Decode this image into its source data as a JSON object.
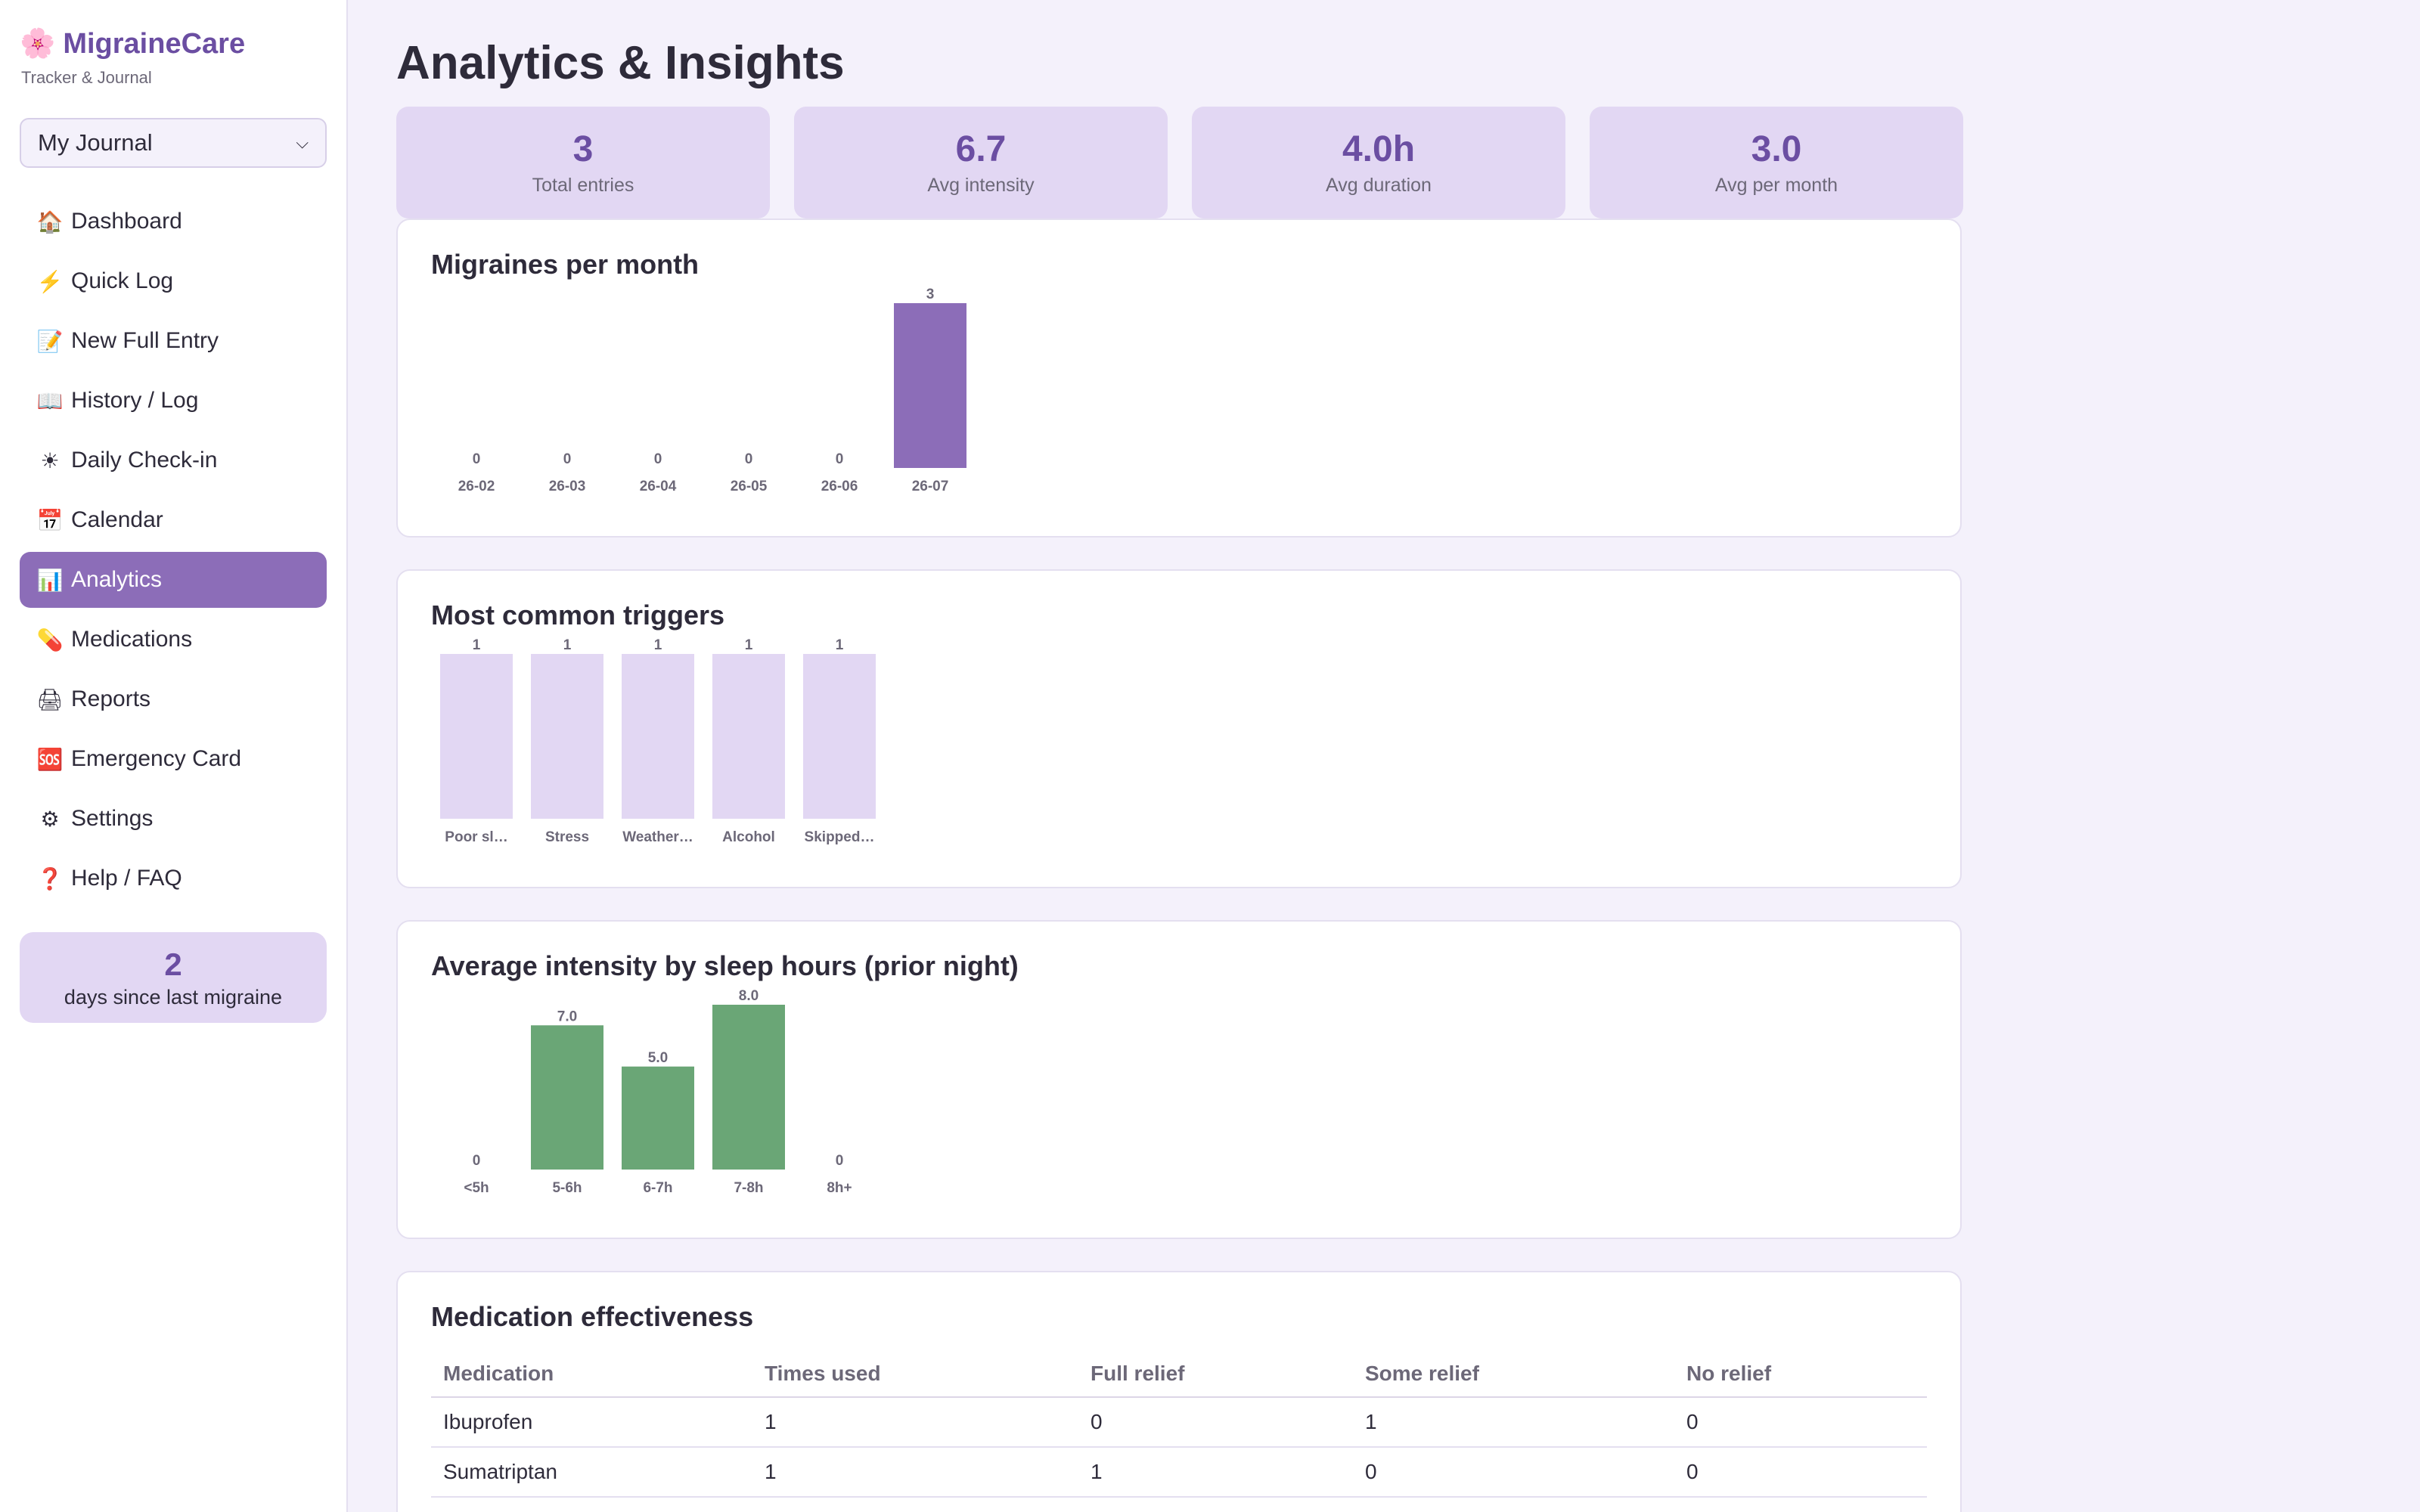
{
  "app": {
    "name": "MigraineCare",
    "tagline": "Tracker & Journal"
  },
  "journal_select": {
    "value": "My Journal"
  },
  "sidebar": {
    "items": [
      {
        "icon": "🏠",
        "icon_name": "home-icon",
        "label": "Dashboard",
        "active": false
      },
      {
        "icon": "⚡",
        "icon_name": "lightning-icon",
        "label": "Quick Log",
        "active": false
      },
      {
        "icon": "📝",
        "icon_name": "memo-icon",
        "label": "New Full Entry",
        "active": false
      },
      {
        "icon": "📖",
        "icon_name": "book-icon",
        "label": "History / Log",
        "active": false
      },
      {
        "icon": "☀",
        "icon_name": "sun-icon",
        "label": "Daily Check-in",
        "active": false
      },
      {
        "icon": "📅",
        "icon_name": "calendar-icon",
        "label": "Calendar",
        "active": false
      },
      {
        "icon": "📊",
        "icon_name": "chart-icon",
        "label": "Analytics",
        "active": true
      },
      {
        "icon": "💊",
        "icon_name": "pill-icon",
        "label": "Medications",
        "active": false
      },
      {
        "icon": "🖨",
        "icon_name": "printer-icon",
        "label": "Reports",
        "active": false
      },
      {
        "icon": "🆘",
        "icon_name": "sos-icon",
        "label": "Emergency Card",
        "active": false
      },
      {
        "icon": "⚙",
        "icon_name": "gear-icon",
        "label": "Settings",
        "active": false
      },
      {
        "icon": "❓",
        "icon_name": "question-icon",
        "label": "Help / FAQ",
        "active": false
      }
    ],
    "streak": {
      "value": "2",
      "label": "days since last migraine"
    }
  },
  "page": {
    "title": "Analytics & Insights"
  },
  "stats": [
    {
      "value": "3",
      "label": "Total entries"
    },
    {
      "value": "6.7",
      "label": "Avg intensity"
    },
    {
      "value": "4.0h",
      "label": "Avg duration"
    },
    {
      "value": "3.0",
      "label": "Avg per month"
    }
  ],
  "colors": {
    "accent": "#8c6db8",
    "trigger_bar": "#e2d7f3",
    "sleep_bar": "#6aa676",
    "text_muted": "#6c6878"
  },
  "cards": {
    "monthly_title": "Migraines per month",
    "triggers_title": "Most common triggers",
    "sleep_title": "Average intensity by sleep hours (prior night)",
    "meds_title": "Medication effectiveness"
  },
  "chart_data": [
    {
      "type": "bar",
      "title": "Migraines per month",
      "categories": [
        "26-02",
        "26-03",
        "26-04",
        "26-05",
        "26-06",
        "26-07"
      ],
      "values": [
        0,
        0,
        0,
        0,
        0,
        3
      ],
      "value_labels": [
        "0",
        "0",
        "0",
        "0",
        "0",
        "3"
      ],
      "ylim": [
        0,
        3
      ]
    },
    {
      "type": "bar",
      "title": "Most common triggers",
      "categories": [
        "Poor sl…",
        "Stress",
        "Weather…",
        "Alcohol",
        "Skipped…"
      ],
      "values": [
        1,
        1,
        1,
        1,
        1
      ],
      "value_labels": [
        "1",
        "1",
        "1",
        "1",
        "1"
      ],
      "ylim": [
        0,
        1
      ]
    },
    {
      "type": "bar",
      "title": "Average intensity by sleep hours (prior night)",
      "categories": [
        "<5h",
        "5-6h",
        "6-7h",
        "7-8h",
        "8h+"
      ],
      "values": [
        0,
        7.0,
        5.0,
        8.0,
        0
      ],
      "value_labels": [
        "0",
        "7.0",
        "5.0",
        "8.0",
        "0"
      ],
      "ylim": [
        0,
        8
      ]
    }
  ],
  "medication_table": {
    "headers": [
      "Medication",
      "Times used",
      "Full relief",
      "Some relief",
      "No relief"
    ],
    "rows": [
      [
        "Ibuprofen",
        "1",
        "0",
        "1",
        "0"
      ],
      [
        "Sumatriptan",
        "1",
        "1",
        "0",
        "0"
      ]
    ]
  }
}
